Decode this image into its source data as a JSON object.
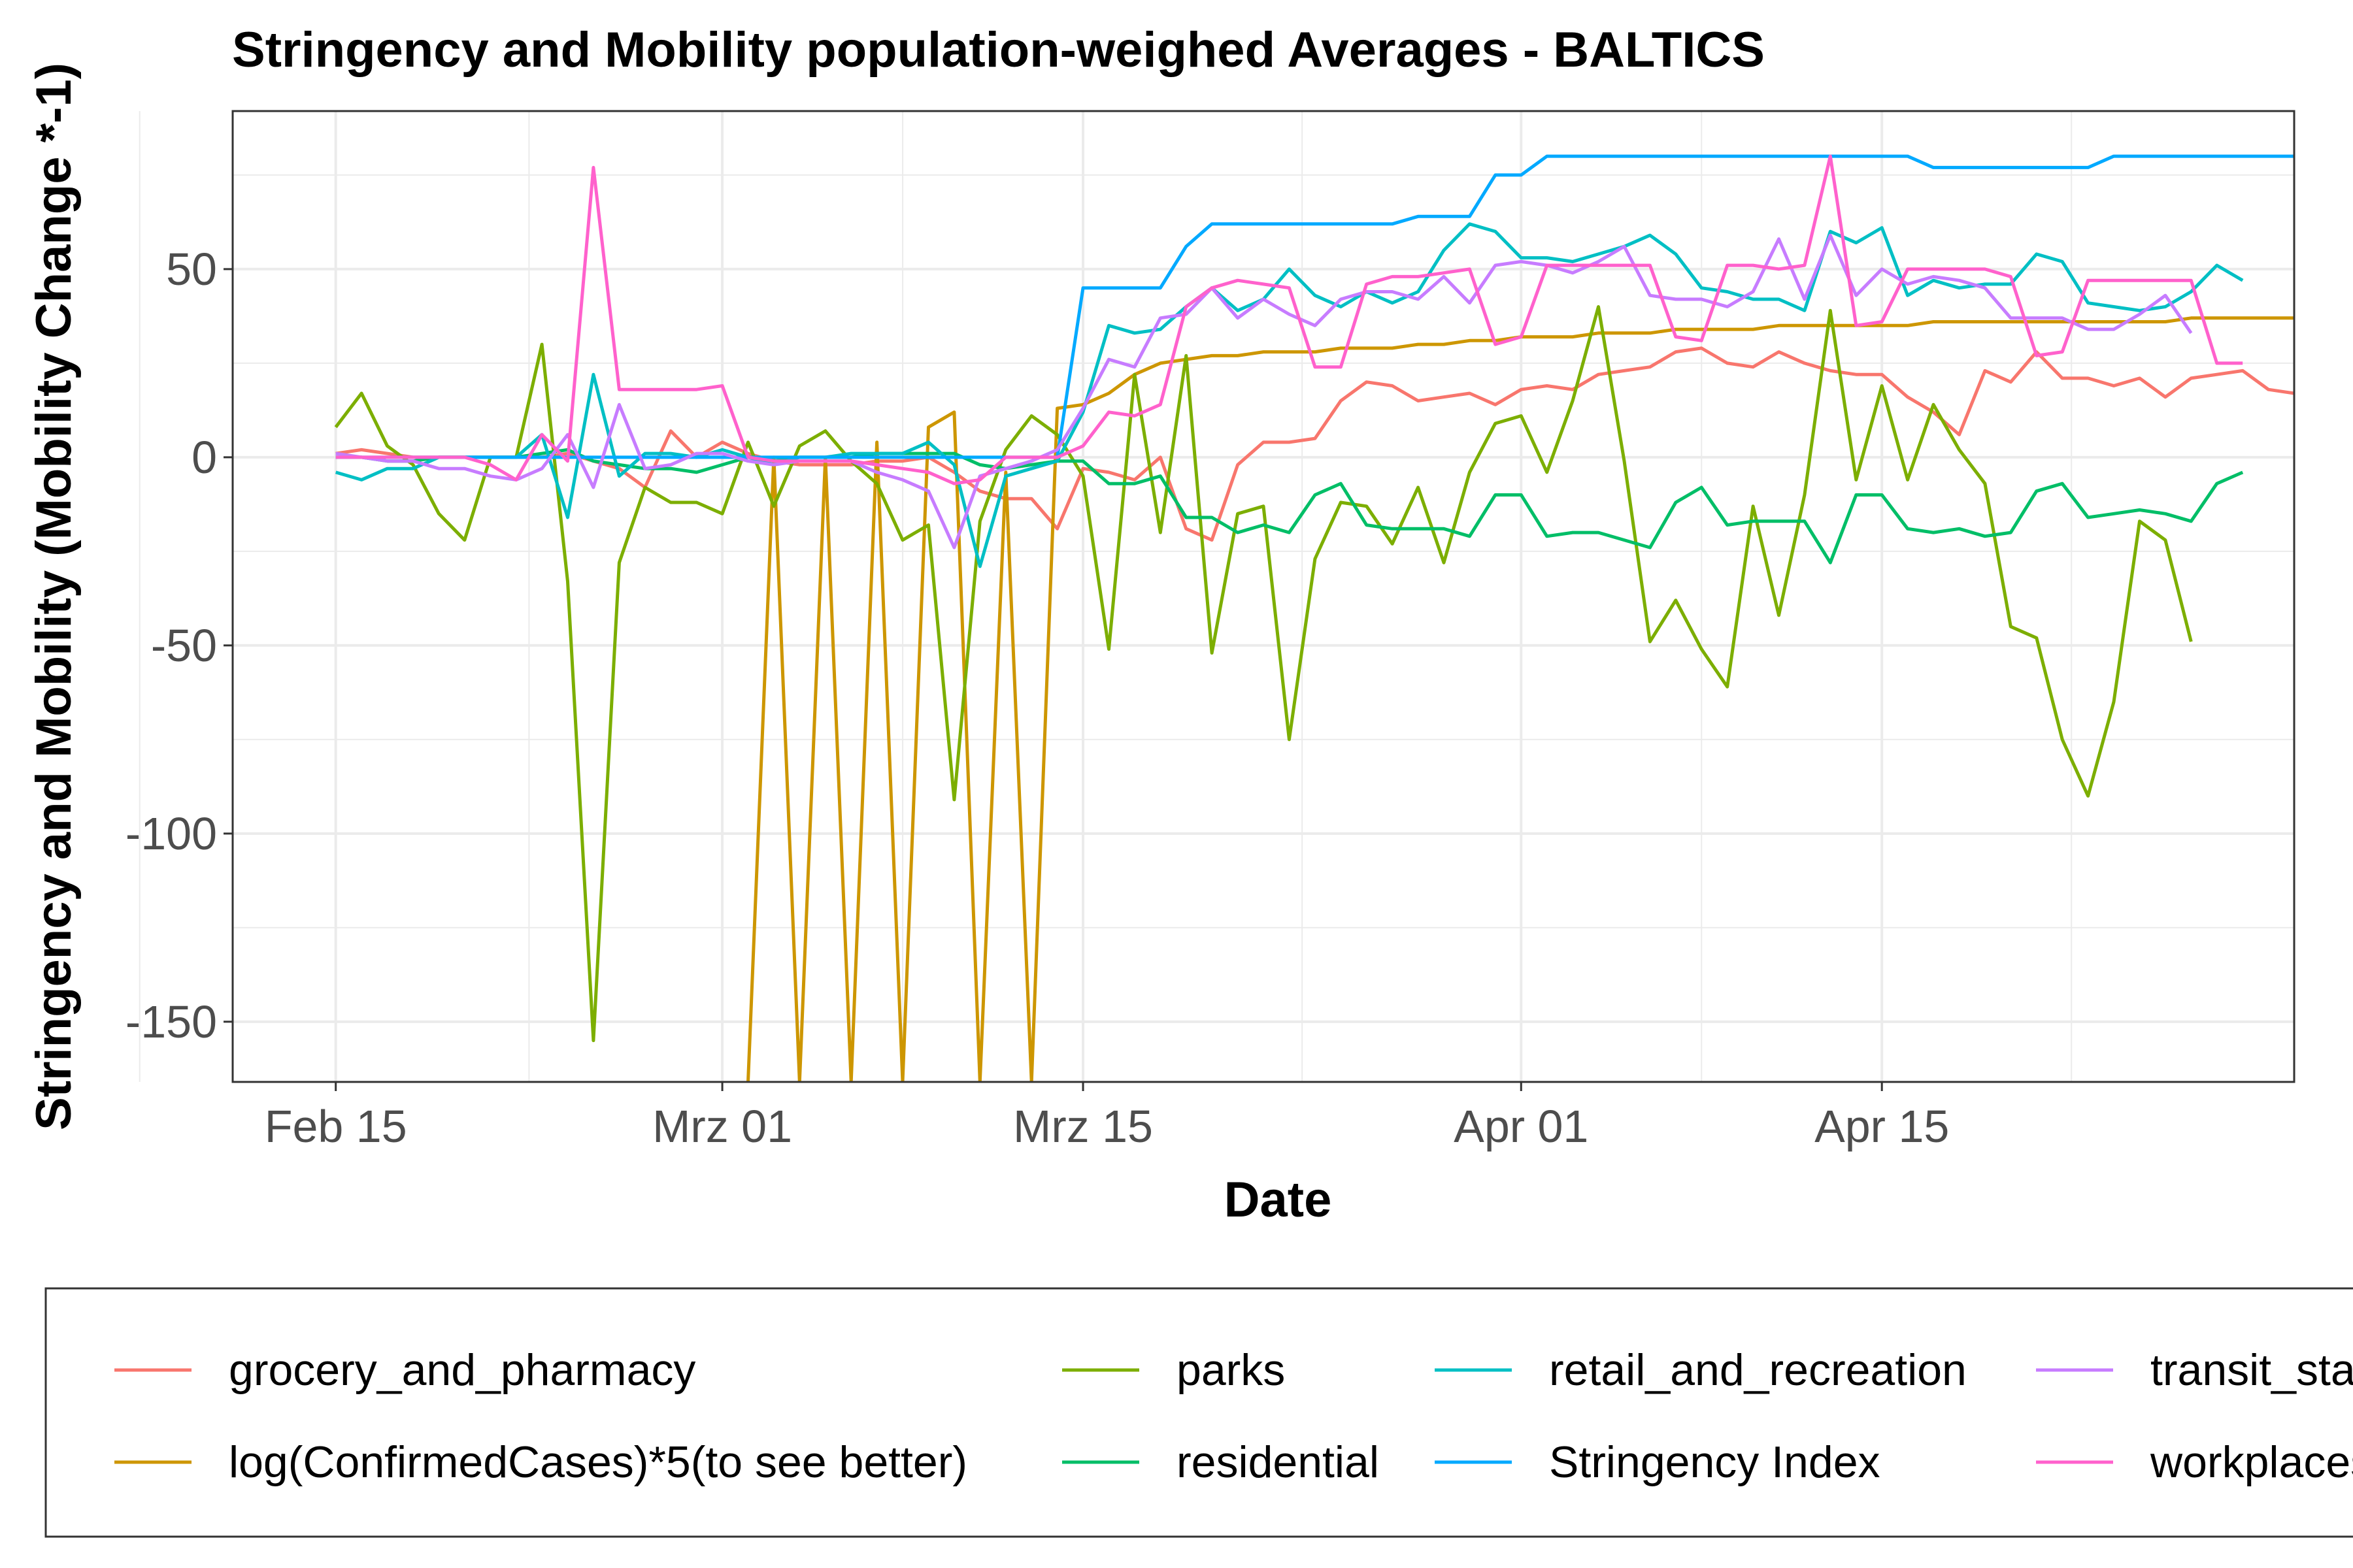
{
  "chart_data": {
    "type": "line",
    "title": "Stringency and Mobility population-weighed Averages - BALTICS",
    "xlabel": "Date",
    "ylabel": "Stringency and Mobility (Mobility Change *-1)",
    "xlim": [
      "2020-02-11",
      "2020-05-01"
    ],
    "ylim": [
      -166,
      92
    ],
    "x_ticks": [
      {
        "date": "2020-02-15",
        "label": "Feb 15"
      },
      {
        "date": "2020-03-01",
        "label": "Mrz 01"
      },
      {
        "date": "2020-03-15",
        "label": "Mrz 15"
      },
      {
        "date": "2020-04-01",
        "label": "Apr 01"
      },
      {
        "date": "2020-04-15",
        "label": "Apr 15"
      }
    ],
    "y_ticks": [
      50,
      0,
      -50,
      -100,
      -150
    ],
    "y_tick_labels": [
      "50",
      "0",
      "-50",
      "-100",
      "-150"
    ],
    "grid": true,
    "legend_position": "bottom",
    "x_start": "2020-02-15",
    "x_step": "1 day",
    "series": [
      {
        "name": "grocery_and_pharmacy",
        "color": "#F8766D",
        "values": [
          1,
          2,
          1,
          0,
          0,
          0,
          0,
          0,
          0,
          1,
          -1,
          -3,
          -8,
          7,
          0,
          4,
          1,
          -1,
          -2,
          -2,
          -2,
          -1,
          -1,
          0,
          -4,
          -9,
          -11,
          -11,
          -19,
          -3,
          -4,
          -6,
          0,
          -19,
          -22,
          -2,
          4,
          4,
          5,
          15,
          20,
          19,
          15,
          16,
          17,
          14,
          18,
          19,
          18,
          22,
          23,
          24,
          28,
          29,
          25,
          24,
          28,
          25,
          23,
          22,
          22,
          16,
          12,
          6,
          23,
          20,
          28,
          21,
          21,
          19,
          21,
          16,
          21,
          22,
          23,
          18,
          17,
          18,
          19,
          17,
          17
        ]
      },
      {
        "name": "log(ConfirmedCases)*5(to see better)",
        "color": "#CD9600",
        "values": [
          null,
          null,
          null,
          null,
          null,
          null,
          null,
          null,
          null,
          null,
          null,
          null,
          null,
          null,
          null,
          null,
          -166,
          0,
          -166,
          0,
          -166,
          4,
          -166,
          8,
          12,
          -166,
          -4,
          -166,
          13,
          14,
          17,
          22,
          25,
          26,
          27,
          27,
          28,
          28,
          28,
          29,
          29,
          29,
          30,
          30,
          31,
          31,
          32,
          32,
          32,
          33,
          33,
          33,
          34,
          34,
          34,
          34,
          35,
          35,
          35,
          35,
          35,
          35,
          36,
          36,
          36,
          36,
          36,
          36,
          36,
          36,
          36,
          36,
          37,
          37,
          37,
          37,
          37,
          37,
          37,
          37,
          37
        ]
      },
      {
        "name": "parks",
        "color": "#7CAE00",
        "values": [
          8,
          17,
          3,
          -2,
          -15,
          -22,
          0,
          0,
          30,
          -33,
          -155,
          -28,
          -8,
          -12,
          -12,
          -15,
          4,
          -13,
          3,
          7,
          -1,
          -7,
          -22,
          -18,
          -91,
          -17,
          2,
          11,
          6,
          -5,
          -51,
          22,
          -20,
          27,
          -52,
          -15,
          -13,
          -75,
          -27,
          -12,
          -13,
          -23,
          -8,
          -28,
          -4,
          9,
          11,
          -4,
          15,
          40,
          -1,
          -49,
          -38,
          -51,
          -61,
          -13,
          -42,
          -10,
          39,
          -6,
          19,
          -6,
          14,
          2,
          -7,
          -45,
          -48,
          -75,
          -90,
          -65,
          -17,
          -22,
          -49
        ]
      },
      {
        "name": "residential",
        "color": "#00BE67",
        "values": [
          0,
          0,
          -1,
          -1,
          0,
          0,
          0,
          0,
          1,
          2,
          -1,
          -2,
          -3,
          -3,
          -4,
          -2,
          0,
          -1,
          0,
          0,
          0,
          1,
          1,
          1,
          1,
          -2,
          -3,
          -2,
          -1,
          -1,
          -7,
          -7,
          -5,
          -16,
          -16,
          -20,
          -18,
          -20,
          -10,
          -7,
          -18,
          -19,
          -19,
          -19,
          -21,
          -10,
          -10,
          -21,
          -20,
          -20,
          -22,
          -24,
          -12,
          -8,
          -18,
          -17,
          -17,
          -17,
          -28,
          -10,
          -10,
          -19,
          -20,
          -19,
          -21,
          -20,
          -9,
          -7,
          -16,
          -15,
          -14,
          -15,
          -17,
          -7,
          -4
        ]
      },
      {
        "name": "retail_and_recreation",
        "color": "#00BFC4",
        "values": [
          -4,
          -6,
          -3,
          -3,
          0,
          0,
          0,
          0,
          6,
          -16,
          22,
          -5,
          1,
          1,
          0,
          2,
          0,
          -2,
          0,
          0,
          1,
          1,
          1,
          4,
          -2,
          -29,
          -5,
          -3,
          -1,
          12,
          35,
          33,
          34,
          40,
          45,
          39,
          42,
          50,
          43,
          40,
          44,
          41,
          44,
          55,
          62,
          60,
          53,
          53,
          52,
          54,
          56,
          59,
          54,
          45,
          44,
          42,
          42,
          39,
          60,
          57,
          61,
          43,
          47,
          45,
          46,
          46,
          54,
          52,
          41,
          40,
          39,
          40,
          44,
          51,
          47
        ]
      },
      {
        "name": "Stringency Index",
        "color": "#00A9FF",
        "values": [
          0,
          0,
          0,
          0,
          0,
          0,
          0,
          0,
          0,
          0,
          0,
          0,
          0,
          0,
          0,
          0,
          0,
          0,
          0,
          0,
          0,
          0,
          0,
          0,
          0,
          0,
          0,
          0,
          0,
          45,
          45,
          45,
          45,
          56,
          62,
          62,
          62,
          62,
          62,
          62,
          62,
          62,
          64,
          64,
          64,
          75,
          75,
          80,
          80,
          80,
          80,
          80,
          80,
          80,
          80,
          80,
          80,
          80,
          80,
          80,
          80,
          80,
          77,
          77,
          77,
          77,
          77,
          77,
          77,
          80,
          80,
          80,
          80,
          80,
          80,
          80,
          80,
          80,
          80,
          80,
          80
        ]
      },
      {
        "name": "transit_stations",
        "color": "#C77CFF",
        "values": [
          1,
          0,
          -1,
          -1,
          -3,
          -3,
          -5,
          -6,
          -3,
          6,
          -8,
          14,
          -3,
          -2,
          1,
          1,
          -1,
          -2,
          -1,
          -1,
          -1,
          -4,
          -6,
          -9,
          -24,
          -5,
          -3,
          -1,
          2,
          13,
          26,
          24,
          37,
          38,
          45,
          37,
          42,
          38,
          35,
          42,
          44,
          44,
          42,
          48,
          41,
          51,
          52,
          51,
          49,
          52,
          56,
          43,
          42,
          42,
          40,
          44,
          58,
          42,
          59,
          43,
          50,
          46,
          48,
          47,
          45,
          37,
          37,
          37,
          34,
          34,
          38,
          43,
          33
        ]
      },
      {
        "name": "workplaces",
        "color": "#FF61CC",
        "values": [
          0,
          0,
          0,
          0,
          0,
          0,
          -2,
          -6,
          6,
          -1,
          77,
          18,
          18,
          18,
          18,
          19,
          0,
          -1,
          -1,
          -1,
          -1,
          -2,
          -3,
          -4,
          -7,
          -6,
          0,
          0,
          0,
          3,
          12,
          11,
          14,
          40,
          45,
          47,
          46,
          45,
          24,
          24,
          46,
          48,
          48,
          49,
          50,
          30,
          32,
          51,
          51,
          51,
          51,
          51,
          32,
          31,
          51,
          51,
          50,
          51,
          80,
          35,
          36,
          50,
          50,
          50,
          50,
          48,
          27,
          28,
          47,
          47,
          47,
          47,
          47,
          25,
          25
        ]
      }
    ]
  }
}
